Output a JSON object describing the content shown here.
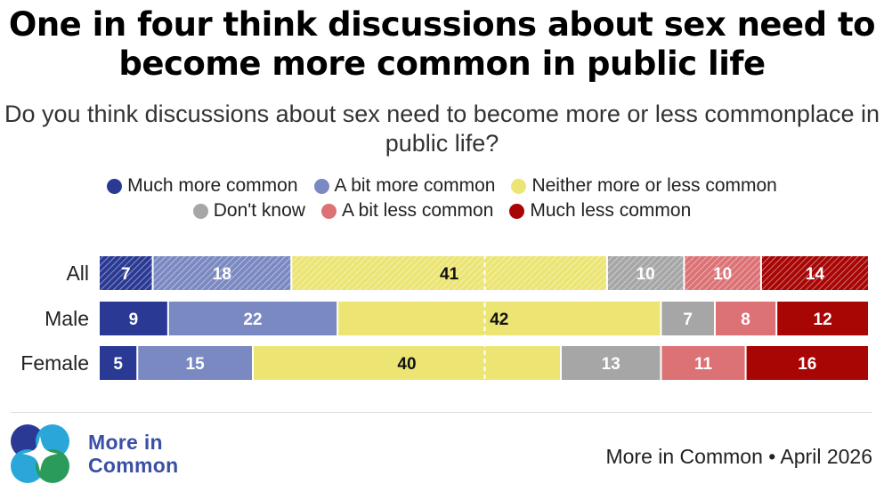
{
  "title": "One in four think discussions about sex need to become more common in public life",
  "subtitle": "Do you think discussions about sex need to become more or less commonplace in public life?",
  "legend": {
    "row1": [
      {
        "label": "Much more common",
        "color": "#2a3a94"
      },
      {
        "label": "A bit more common",
        "color": "#7b89c2"
      },
      {
        "label": "Neither more or less common",
        "color": "#ece574"
      }
    ],
    "row2": [
      {
        "label": "Don't know",
        "color": "#a6a6a6"
      },
      {
        "label": "A bit less common",
        "color": "#dc7275"
      },
      {
        "label": "Much less common",
        "color": "#a80505"
      }
    ]
  },
  "chart_data": {
    "type": "bar",
    "orientation": "horizontal",
    "stacked": true,
    "categories": [
      "All",
      "Male",
      "Female"
    ],
    "series": [
      {
        "name": "Much more common",
        "color": "#2a3a94",
        "values": [
          7,
          9,
          5
        ]
      },
      {
        "name": "A bit more common",
        "color": "#7b89c2",
        "values": [
          18,
          22,
          15
        ]
      },
      {
        "name": "Neither more or less common",
        "color": "#ece574",
        "values": [
          41,
          42,
          40
        ]
      },
      {
        "name": "Don't know",
        "color": "#a6a6a6",
        "values": [
          10,
          7,
          13
        ]
      },
      {
        "name": "A bit less common",
        "color": "#dc7275",
        "values": [
          10,
          8,
          11
        ]
      },
      {
        "name": "Much less common",
        "color": "#a80505",
        "values": [
          14,
          12,
          16
        ]
      }
    ],
    "hatched_categories": [
      "All"
    ],
    "midline": true,
    "legend_position": "top"
  },
  "brand": {
    "line1": "More in",
    "line2": "Common"
  },
  "source": "More in Common • April 2026"
}
